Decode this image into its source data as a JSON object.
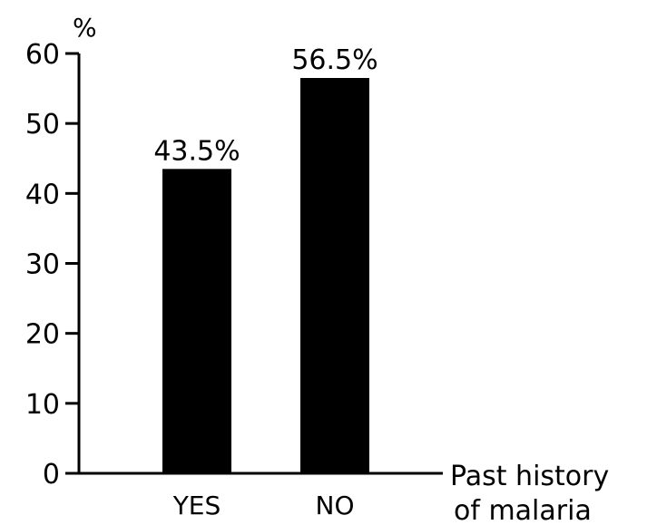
{
  "chart_data": {
    "type": "bar",
    "categories": [
      "YES",
      "NO"
    ],
    "values": [
      43.5,
      56.5
    ],
    "data_labels": [
      "43.5%",
      "56.5%"
    ],
    "title": "",
    "xlabel": [
      "Past history",
      "of malaria"
    ],
    "ylabel": "%",
    "ylim": [
      0,
      60
    ],
    "yticks": [
      0,
      10,
      20,
      30,
      40,
      50,
      60
    ],
    "ytick_labels": [
      "0",
      "10",
      "20",
      "30",
      "40",
      "50",
      "60"
    ],
    "grid": false,
    "legend": "none",
    "bar_color": "#000000"
  }
}
